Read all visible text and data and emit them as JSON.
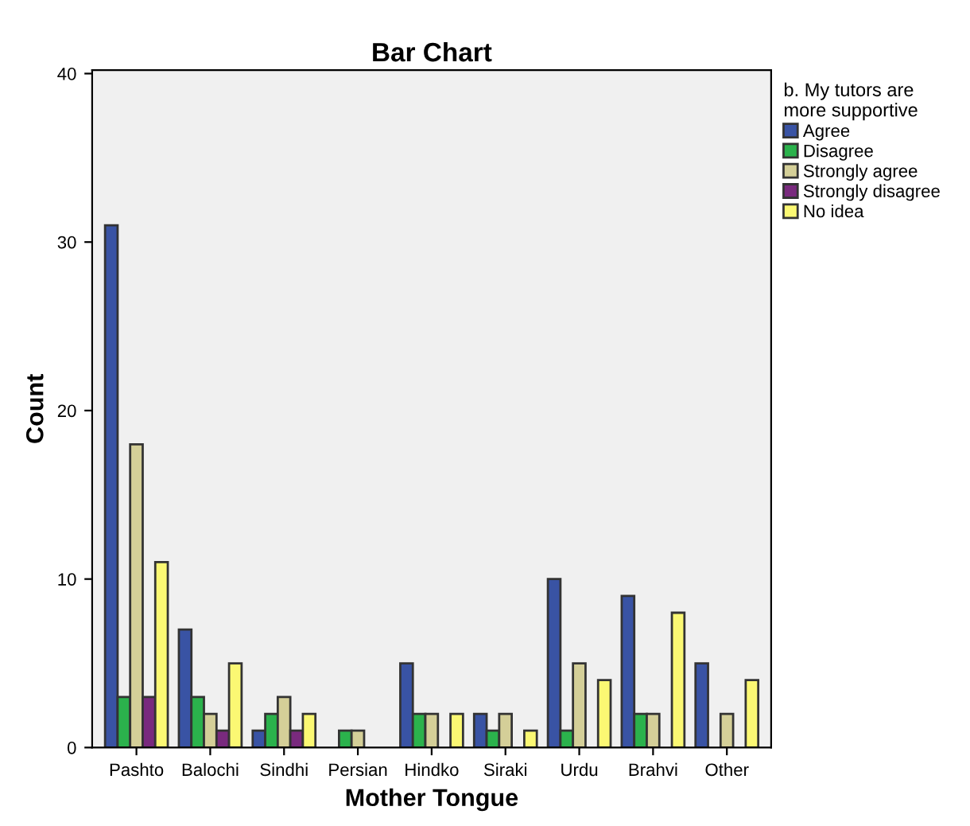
{
  "chart_data": {
    "type": "bar",
    "title": "Bar Chart",
    "xlabel": "Mother Tongue",
    "ylabel": "Count",
    "legend_title": "b. My tutors are more supportive",
    "categories": [
      "Pashto",
      "Balochi",
      "Sindhi",
      "Persian",
      "Hindko",
      "Siraki",
      "Urdu",
      "Brahvi",
      "Other"
    ],
    "series": [
      {
        "name": "Agree",
        "color": "#3953a4",
        "values": [
          31,
          7,
          1,
          null,
          5,
          2,
          10,
          9,
          5
        ]
      },
      {
        "name": "Disagree",
        "color": "#2bb24c",
        "values": [
          3,
          3,
          2,
          1,
          2,
          1,
          1,
          2,
          null
        ]
      },
      {
        "name": "Strongly agree",
        "color": "#d4cf98",
        "values": [
          18,
          2,
          3,
          1,
          2,
          2,
          5,
          2,
          2
        ]
      },
      {
        "name": "Strongly disagree",
        "color": "#792a7e",
        "values": [
          3,
          1,
          1,
          null,
          null,
          null,
          null,
          null,
          null
        ]
      },
      {
        "name": "No idea",
        "color": "#fbf873",
        "values": [
          11,
          5,
          2,
          null,
          2,
          1,
          4,
          8,
          4
        ]
      }
    ],
    "ylim": [
      0,
      40.2
    ],
    "yticks": [
      0,
      10,
      20,
      30,
      40
    ],
    "grid": false,
    "legend": "top right"
  }
}
